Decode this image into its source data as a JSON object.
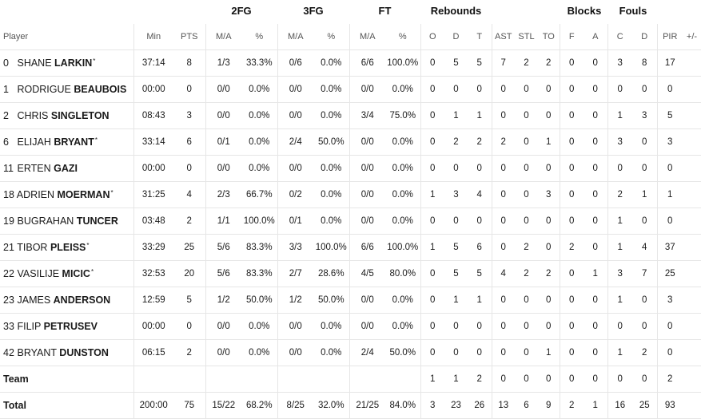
{
  "group_headers": {
    "fg2": "2FG",
    "fg3": "3FG",
    "ft": "FT",
    "reb": "Rebounds",
    "blocks": "Blocks",
    "fouls": "Fouls"
  },
  "columns": {
    "player": "Player",
    "min": "Min",
    "pts": "PTS",
    "fg2_ma": "M/A",
    "fg2_pct": "%",
    "fg3_ma": "M/A",
    "fg3_pct": "%",
    "ft_ma": "M/A",
    "ft_pct": "%",
    "o": "O",
    "d": "D",
    "t": "T",
    "ast": "AST",
    "stl": "STL",
    "to": "TO",
    "bf": "F",
    "ba": "A",
    "fc": "C",
    "fd": "D",
    "pir": "PIR",
    "pm": "+/-"
  },
  "players": [
    {
      "num": "0",
      "first": "SHANE",
      "last": "LARKIN",
      "star": "*",
      "min": "37:14",
      "pts": "8",
      "fg2_ma": "1/3",
      "fg2_pct": "33.3%",
      "fg3_ma": "0/6",
      "fg3_pct": "0.0%",
      "ft_ma": "6/6",
      "ft_pct": "100.0%",
      "o": "0",
      "d": "5",
      "t": "5",
      "ast": "7",
      "stl": "2",
      "to": "2",
      "bf": "0",
      "ba": "0",
      "fc": "3",
      "fd": "8",
      "pir": "17",
      "pm": ""
    },
    {
      "num": "1",
      "first": "RODRIGUE",
      "last": "BEAUBOIS",
      "star": "",
      "min": "00:00",
      "pts": "0",
      "fg2_ma": "0/0",
      "fg2_pct": "0.0%",
      "fg3_ma": "0/0",
      "fg3_pct": "0.0%",
      "ft_ma": "0/0",
      "ft_pct": "0.0%",
      "o": "0",
      "d": "0",
      "t": "0",
      "ast": "0",
      "stl": "0",
      "to": "0",
      "bf": "0",
      "ba": "0",
      "fc": "0",
      "fd": "0",
      "pir": "0",
      "pm": ""
    },
    {
      "num": "2",
      "first": "CHRIS",
      "last": "SINGLETON",
      "star": "",
      "min": "08:43",
      "pts": "3",
      "fg2_ma": "0/0",
      "fg2_pct": "0.0%",
      "fg3_ma": "0/0",
      "fg3_pct": "0.0%",
      "ft_ma": "3/4",
      "ft_pct": "75.0%",
      "o": "0",
      "d": "1",
      "t": "1",
      "ast": "0",
      "stl": "0",
      "to": "0",
      "bf": "0",
      "ba": "0",
      "fc": "1",
      "fd": "3",
      "pir": "5",
      "pm": ""
    },
    {
      "num": "6",
      "first": "ELIJAH",
      "last": "BRYANT",
      "star": "*",
      "min": "33:14",
      "pts": "6",
      "fg2_ma": "0/1",
      "fg2_pct": "0.0%",
      "fg3_ma": "2/4",
      "fg3_pct": "50.0%",
      "ft_ma": "0/0",
      "ft_pct": "0.0%",
      "o": "0",
      "d": "2",
      "t": "2",
      "ast": "2",
      "stl": "0",
      "to": "1",
      "bf": "0",
      "ba": "0",
      "fc": "3",
      "fd": "0",
      "pir": "3",
      "pm": ""
    },
    {
      "num": "11",
      "first": "ERTEN",
      "last": "GAZI",
      "star": "",
      "min": "00:00",
      "pts": "0",
      "fg2_ma": "0/0",
      "fg2_pct": "0.0%",
      "fg3_ma": "0/0",
      "fg3_pct": "0.0%",
      "ft_ma": "0/0",
      "ft_pct": "0.0%",
      "o": "0",
      "d": "0",
      "t": "0",
      "ast": "0",
      "stl": "0",
      "to": "0",
      "bf": "0",
      "ba": "0",
      "fc": "0",
      "fd": "0",
      "pir": "0",
      "pm": ""
    },
    {
      "num": "18",
      "first": "ADRIEN",
      "last": "MOERMAN",
      "star": "*",
      "min": "31:25",
      "pts": "4",
      "fg2_ma": "2/3",
      "fg2_pct": "66.7%",
      "fg3_ma": "0/2",
      "fg3_pct": "0.0%",
      "ft_ma": "0/0",
      "ft_pct": "0.0%",
      "o": "1",
      "d": "3",
      "t": "4",
      "ast": "0",
      "stl": "0",
      "to": "3",
      "bf": "0",
      "ba": "0",
      "fc": "2",
      "fd": "1",
      "pir": "1",
      "pm": ""
    },
    {
      "num": "19",
      "first": "BUGRAHAN",
      "last": "TUNCER",
      "star": "",
      "min": "03:48",
      "pts": "2",
      "fg2_ma": "1/1",
      "fg2_pct": "100.0%",
      "fg3_ma": "0/1",
      "fg3_pct": "0.0%",
      "ft_ma": "0/0",
      "ft_pct": "0.0%",
      "o": "0",
      "d": "0",
      "t": "0",
      "ast": "0",
      "stl": "0",
      "to": "0",
      "bf": "0",
      "ba": "0",
      "fc": "1",
      "fd": "0",
      "pir": "0",
      "pm": ""
    },
    {
      "num": "21",
      "first": "TIBOR",
      "last": "PLEISS",
      "star": "*",
      "min": "33:29",
      "pts": "25",
      "fg2_ma": "5/6",
      "fg2_pct": "83.3%",
      "fg3_ma": "3/3",
      "fg3_pct": "100.0%",
      "ft_ma": "6/6",
      "ft_pct": "100.0%",
      "o": "1",
      "d": "5",
      "t": "6",
      "ast": "0",
      "stl": "2",
      "to": "0",
      "bf": "2",
      "ba": "0",
      "fc": "1",
      "fd": "4",
      "pir": "37",
      "pm": ""
    },
    {
      "num": "22",
      "first": "VASILIJE",
      "last": "MICIC",
      "star": "*",
      "min": "32:53",
      "pts": "20",
      "fg2_ma": "5/6",
      "fg2_pct": "83.3%",
      "fg3_ma": "2/7",
      "fg3_pct": "28.6%",
      "ft_ma": "4/5",
      "ft_pct": "80.0%",
      "o": "0",
      "d": "5",
      "t": "5",
      "ast": "4",
      "stl": "2",
      "to": "2",
      "bf": "0",
      "ba": "1",
      "fc": "3",
      "fd": "7",
      "pir": "25",
      "pm": ""
    },
    {
      "num": "23",
      "first": "JAMES",
      "last": "ANDERSON",
      "star": "",
      "min": "12:59",
      "pts": "5",
      "fg2_ma": "1/2",
      "fg2_pct": "50.0%",
      "fg3_ma": "1/2",
      "fg3_pct": "50.0%",
      "ft_ma": "0/0",
      "ft_pct": "0.0%",
      "o": "0",
      "d": "1",
      "t": "1",
      "ast": "0",
      "stl": "0",
      "to": "0",
      "bf": "0",
      "ba": "0",
      "fc": "1",
      "fd": "0",
      "pir": "3",
      "pm": ""
    },
    {
      "num": "33",
      "first": "FILIP",
      "last": "PETRUSEV",
      "star": "",
      "min": "00:00",
      "pts": "0",
      "fg2_ma": "0/0",
      "fg2_pct": "0.0%",
      "fg3_ma": "0/0",
      "fg3_pct": "0.0%",
      "ft_ma": "0/0",
      "ft_pct": "0.0%",
      "o": "0",
      "d": "0",
      "t": "0",
      "ast": "0",
      "stl": "0",
      "to": "0",
      "bf": "0",
      "ba": "0",
      "fc": "0",
      "fd": "0",
      "pir": "0",
      "pm": ""
    },
    {
      "num": "42",
      "first": "BRYANT",
      "last": "DUNSTON",
      "star": "",
      "min": "06:15",
      "pts": "2",
      "fg2_ma": "0/0",
      "fg2_pct": "0.0%",
      "fg3_ma": "0/0",
      "fg3_pct": "0.0%",
      "ft_ma": "2/4",
      "ft_pct": "50.0%",
      "o": "0",
      "d": "0",
      "t": "0",
      "ast": "0",
      "stl": "0",
      "to": "1",
      "bf": "0",
      "ba": "0",
      "fc": "1",
      "fd": "2",
      "pir": "0",
      "pm": ""
    }
  ],
  "team": {
    "label": "Team",
    "min": "",
    "pts": "",
    "fg2_ma": "",
    "fg2_pct": "",
    "fg3_ma": "",
    "fg3_pct": "",
    "ft_ma": "",
    "ft_pct": "",
    "o": "1",
    "d": "1",
    "t": "2",
    "ast": "0",
    "stl": "0",
    "to": "0",
    "bf": "0",
    "ba": "0",
    "fc": "0",
    "fd": "0",
    "pir": "2",
    "pm": ""
  },
  "total": {
    "label": "Total",
    "min": "200:00",
    "pts": "75",
    "fg2_ma": "15/22",
    "fg2_pct": "68.2%",
    "fg3_ma": "8/25",
    "fg3_pct": "32.0%",
    "ft_ma": "21/25",
    "ft_pct": "84.0%",
    "o": "3",
    "d": "23",
    "t": "26",
    "ast": "13",
    "stl": "6",
    "to": "9",
    "bf": "2",
    "ba": "1",
    "fc": "16",
    "fd": "25",
    "pir": "93",
    "pm": ""
  }
}
